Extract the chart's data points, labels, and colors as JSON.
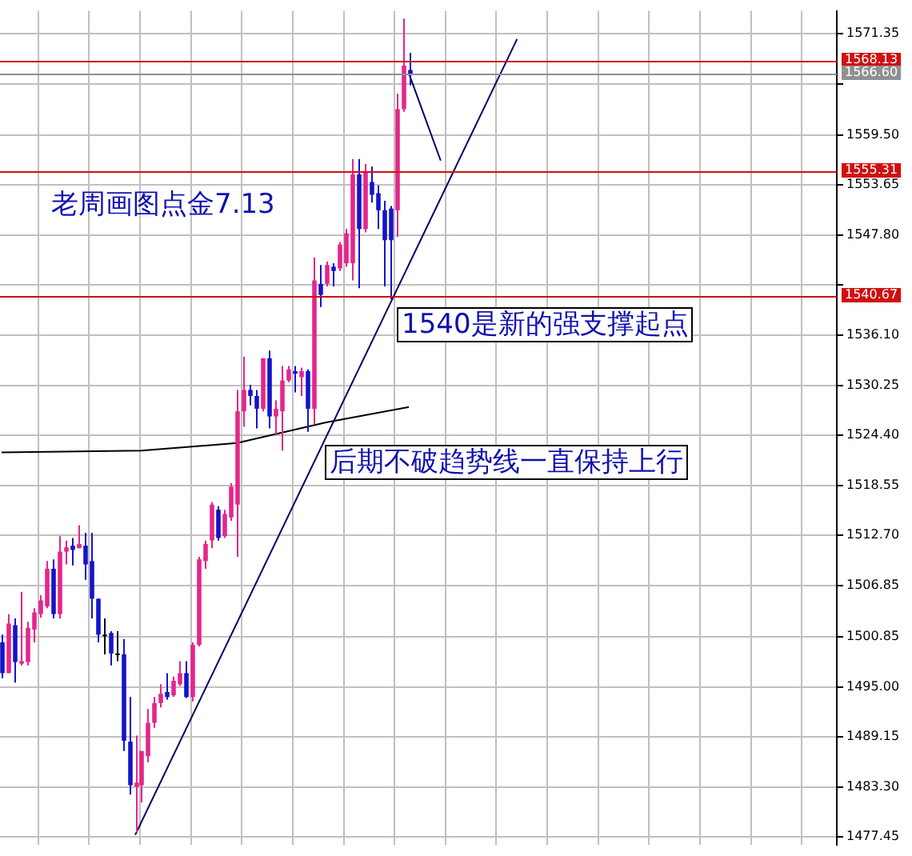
{
  "chart_data": {
    "type": "candlestick",
    "categories": [
      null,
      null,
      null,
      null,
      null,
      null,
      null,
      null,
      null,
      null,
      null,
      null,
      null,
      null,
      null,
      null,
      null,
      null,
      null,
      null,
      null,
      null,
      null,
      null,
      null,
      null,
      null,
      null,
      null,
      null,
      null,
      null,
      null,
      null,
      null,
      null,
      null,
      null,
      null,
      null,
      null,
      null,
      null,
      null,
      null,
      null,
      null,
      null,
      null,
      null,
      null,
      null,
      null,
      null,
      null,
      null,
      null,
      null,
      null,
      null,
      null,
      null,
      null,
      null,
      null,
      null,
      null,
      null,
      null,
      null,
      null,
      null,
      null,
      null,
      null,
      null,
      null,
      null,
      null,
      null,
      null,
      null,
      null,
      null,
      null,
      null,
      null,
      null,
      null,
      null,
      null,
      null,
      null,
      null,
      null,
      null,
      null,
      null,
      null,
      null,
      null,
      null,
      null,
      null,
      null,
      null,
      null,
      null,
      null,
      null,
      null,
      null,
      null,
      null,
      null,
      null,
      null,
      null,
      null,
      null,
      null,
      null,
      null,
      null,
      null,
      null,
      null,
      null,
      null,
      null,
      null,
      null
    ],
    "series": [
      {
        "type": "candlestick",
        "ohlc": [
          [
            1500.2,
            1501.1,
            1496.0,
            1496.6
          ],
          [
            1496.6,
            1503.5,
            1496.6,
            1502.4
          ],
          [
            1502.2,
            1503.0,
            1495.5,
            1497.9
          ],
          [
            1497.7,
            1506.1,
            1497.5,
            1498.0
          ],
          [
            1497.9,
            1502.6,
            1497.5,
            1501.9
          ],
          [
            1501.7,
            1504.2,
            1500.2,
            1503.7
          ],
          [
            1503.5,
            1505.7,
            1503.1,
            1505.1
          ],
          [
            1504.4,
            1509.7,
            1504.2,
            1508.8
          ],
          [
            1508.8,
            1509.9,
            1503.0,
            1503.5
          ],
          [
            1503.5,
            1512.6,
            1503.0,
            1510.8
          ],
          [
            1510.8,
            1512.1,
            1509.3,
            1511.3
          ],
          [
            1511.5,
            1512.4,
            1509.2,
            1511.0
          ],
          [
            1511.2,
            1513.9,
            1511.2,
            1511.7
          ],
          [
            1511.5,
            1513.0,
            1507.5,
            1509.3
          ],
          [
            1509.7,
            1513.0,
            1503.0,
            1505.3
          ],
          [
            1505.3,
            1505.3,
            1500.2,
            1501.1
          ],
          [
            1501.1,
            1503.0,
            1498.8,
            1501.1
          ],
          [
            1501.3,
            1501.5,
            1497.5,
            1498.9
          ],
          [
            1498.9,
            1501.5,
            1498.0,
            1498.9
          ],
          [
            1498.8,
            1500.6,
            1487.5,
            1488.7
          ],
          [
            1488.6,
            1493.8,
            1482.4,
            1483.5
          ],
          [
            1483.3,
            1489.3,
            1478.0,
            1483.8
          ],
          [
            1483.5,
            1487.5,
            1481.5,
            1487.5
          ],
          [
            1486.9,
            1492.4,
            1486.2,
            1490.8
          ],
          [
            1490.8,
            1493.8,
            1490.2,
            1493.1
          ],
          [
            1493.1,
            1495.3,
            1492.6,
            1494.2
          ],
          [
            1494.4,
            1496.6,
            1493.5,
            1493.8
          ],
          [
            1494.0,
            1496.2,
            1493.8,
            1495.7
          ],
          [
            1495.3,
            1498.0,
            1495.1,
            1496.6
          ],
          [
            1496.6,
            1498.0,
            1493.7,
            1493.8
          ],
          [
            1493.8,
            1500.2,
            1493.3,
            1499.9
          ],
          [
            1499.9,
            1510.2,
            1499.7,
            1509.9
          ],
          [
            1509.7,
            1512.1,
            1508.8,
            1511.7
          ],
          [
            1512.1,
            1516.6,
            1511.2,
            1516.3
          ],
          [
            1515.7,
            1516.1,
            1512.1,
            1512.4
          ],
          [
            1512.6,
            1515.7,
            1512.4,
            1515.2
          ],
          [
            1514.8,
            1518.8,
            1514.4,
            1518.4
          ],
          [
            1516.3,
            1529.7,
            1510.2,
            1527.2
          ],
          [
            1527.2,
            1533.6,
            1525.4,
            1529.7
          ],
          [
            1529.7,
            1530.3,
            1527.9,
            1529.0
          ],
          [
            1529.0,
            1529.7,
            1525.2,
            1527.5
          ],
          [
            1527.5,
            1533.4,
            1527.2,
            1533.4
          ],
          [
            1533.4,
            1534.3,
            1525.2,
            1526.6
          ],
          [
            1526.6,
            1528.5,
            1524.5,
            1527.5
          ],
          [
            1527.2,
            1532.5,
            1522.6,
            1530.8
          ],
          [
            1530.8,
            1532.5,
            1530.6,
            1532.1
          ],
          [
            1531.9,
            1532.5,
            1529.4,
            1531.6
          ],
          [
            1531.2,
            1532.3,
            1529.0,
            1531.9
          ],
          [
            1531.9,
            1532.1,
            1524.8,
            1527.5
          ],
          [
            1527.5,
            1545.2,
            1525.7,
            1542.5
          ],
          [
            1542.1,
            1544.3,
            1539.4,
            1540.8
          ],
          [
            1542.1,
            1544.7,
            1541.8,
            1544.3
          ],
          [
            1544.1,
            1544.5,
            1541.8,
            1543.6
          ],
          [
            1543.9,
            1547.0,
            1543.6,
            1546.7
          ],
          [
            1544.5,
            1548.5,
            1544.1,
            1548.0
          ],
          [
            1544.5,
            1556.7,
            1542.5,
            1554.9
          ],
          [
            1554.9,
            1556.7,
            1541.6,
            1548.5
          ],
          [
            1548.5,
            1556.1,
            1548.1,
            1555.2
          ],
          [
            1554.0,
            1555.8,
            1551.6,
            1552.5
          ],
          [
            1552.7,
            1553.6,
            1548.5,
            1550.7
          ],
          [
            1550.7,
            1551.8,
            1541.8,
            1547.2
          ],
          [
            1550.9,
            1551.2,
            1540.3,
            1547.2
          ],
          [
            1550.7,
            1564.3,
            1547.6,
            1562.5
          ],
          [
            1562.5,
            1573.1,
            1562.2,
            1567.6
          ],
          [
            1567.1,
            1569.1,
            1565.3,
            1566.6
          ],
          null,
          null,
          null,
          null,
          null,
          null,
          null,
          null,
          null,
          null,
          null,
          null,
          null,
          null,
          null,
          null,
          null,
          null,
          null,
          null,
          null,
          null,
          null,
          null,
          null,
          null,
          null,
          null,
          null,
          null,
          null,
          null,
          null,
          null,
          null,
          null,
          null,
          null,
          null,
          null,
          null,
          null,
          null,
          null,
          null,
          null,
          null,
          null,
          null,
          null,
          null,
          null,
          null,
          null,
          null,
          null,
          null,
          null,
          null,
          null,
          null,
          null,
          null,
          null,
          null,
          null,
          null
        ],
        "colors": [
          "#1414c8",
          "#e4268c",
          "#1414c8",
          "#e4268c",
          "#e4268c",
          "#e4268c",
          "#e4268c",
          "#e4268c",
          "#1414c8",
          "#e4268c",
          "#e4268c",
          "#1414c8",
          "#e4268c",
          "#1414c8",
          "#1414c8",
          "#1414c8",
          "#000000",
          "#1414c8",
          "#000000",
          "#1414c8",
          "#1414c8",
          "#e4268c",
          "#e4268c",
          "#e4268c",
          "#e4268c",
          "#e4268c",
          "#1414c8",
          "#e4268c",
          "#e4268c",
          "#1414c8",
          "#e4268c",
          "#e4268c",
          "#e4268c",
          "#e4268c",
          "#1414c8",
          "#e4268c",
          "#e4268c",
          "#e4268c",
          "#e4268c",
          "#1414c8",
          "#1414c8",
          "#e4268c",
          "#1414c8",
          "#e4268c",
          "#e4268c",
          "#e4268c",
          "#1414c8",
          "#e4268c",
          "#1414c8",
          "#e4268c",
          "#1414c8",
          "#e4268c",
          "#1414c8",
          "#e4268c",
          "#e4268c",
          "#e4268c",
          "#1414c8",
          "#e4268c",
          "#1414c8",
          "#1414c8",
          "#1414c8",
          "#1414c8",
          "#e4268c",
          "#e4268c",
          "#1414c8",
          null,
          null,
          null,
          null,
          null,
          null,
          null,
          null,
          null,
          null,
          null,
          null,
          null,
          null,
          null,
          null,
          null,
          null,
          null,
          null,
          null,
          null,
          null,
          null,
          null,
          null,
          null,
          null,
          null,
          null,
          null,
          null,
          null,
          null,
          null,
          null,
          null,
          null,
          null,
          null,
          null,
          null,
          null,
          null,
          null,
          null,
          null,
          null,
          null,
          null,
          null,
          null,
          null,
          null,
          null,
          null,
          null,
          null,
          null,
          null,
          null,
          null,
          null,
          null,
          null,
          null,
          null
        ]
      },
      {
        "type": "line",
        "color": "#000060",
        "values": [
          null,
          null,
          null,
          null,
          null,
          null,
          null,
          null,
          null,
          null,
          null,
          null,
          null,
          null,
          null,
          null,
          null,
          null,
          null,
          null,
          null,
          1477.7,
          null,
          null,
          null,
          null,
          null,
          null,
          null,
          null,
          null,
          null,
          null,
          null,
          null,
          null,
          null,
          null,
          null,
          null,
          null,
          null,
          null,
          null,
          null,
          null,
          null,
          null,
          null,
          null,
          null,
          null,
          null,
          null,
          null,
          null,
          null,
          null,
          null,
          null,
          null,
          null,
          null,
          null,
          null,
          null,
          null,
          null,
          null,
          null,
          null,
          null,
          null,
          null,
          null,
          null,
          null,
          null,
          null,
          null,
          null,
          1570.7,
          null,
          null,
          null,
          null,
          null,
          null,
          null,
          null,
          null,
          null,
          null,
          null,
          null,
          null,
          null,
          null,
          null,
          null,
          null,
          null,
          null,
          null,
          null,
          null,
          null,
          null,
          null,
          null,
          null,
          null,
          null,
          null,
          null,
          null,
          null,
          null,
          null,
          null,
          null,
          null,
          null,
          null,
          null,
          null,
          null,
          null,
          null,
          null,
          null,
          null
        ]
      },
      {
        "type": "line",
        "color": "#000060",
        "values": [
          null,
          null,
          null,
          null,
          null,
          null,
          null,
          null,
          null,
          null,
          null,
          null,
          null,
          null,
          null,
          null,
          null,
          null,
          null,
          null,
          null,
          null,
          null,
          null,
          null,
          null,
          null,
          null,
          null,
          null,
          null,
          null,
          null,
          null,
          null,
          null,
          null,
          null,
          null,
          null,
          null,
          null,
          null,
          null,
          null,
          null,
          null,
          null,
          null,
          null,
          null,
          null,
          null,
          null,
          null,
          null,
          null,
          null,
          null,
          null,
          null,
          null,
          null,
          null,
          1566.7,
          null,
          null,
          null,
          null,
          1556.5,
          null,
          null,
          null,
          null,
          null,
          null,
          null,
          null,
          null,
          null,
          null,
          null,
          null,
          null,
          null,
          null,
          null,
          null,
          null,
          null,
          null,
          null,
          null,
          null,
          null,
          null,
          null,
          null,
          null,
          null,
          null,
          null,
          null,
          null,
          null,
          null,
          null,
          null,
          null,
          null,
          null,
          null,
          null,
          null,
          null,
          null,
          null,
          null,
          null,
          null,
          null,
          null,
          null,
          null,
          null,
          null,
          null,
          null,
          null,
          null,
          null,
          null
        ]
      },
      {
        "type": "line",
        "color": "#000000",
        "values": [
          1522.4,
          null,
          null,
          null,
          null,
          null,
          null,
          null,
          null,
          null,
          null,
          null,
          null,
          null,
          null,
          null,
          null,
          null,
          null,
          null,
          null,
          null,
          1522.6,
          null,
          null,
          null,
          null,
          null,
          null,
          null,
          null,
          null,
          null,
          null,
          null,
          null,
          null,
          1523.5,
          null,
          null,
          null,
          null,
          null,
          null,
          null,
          null,
          null,
          null,
          null,
          null,
          null,
          1525.9,
          null,
          null,
          null,
          null,
          null,
          null,
          null,
          null,
          null,
          null,
          null,
          null,
          1527.7,
          null,
          null,
          null,
          null,
          null,
          null,
          null,
          null,
          null,
          null,
          null,
          null,
          null,
          null,
          null,
          null,
          null,
          null,
          null,
          null,
          null,
          null,
          null,
          null,
          null,
          null,
          null,
          null,
          null,
          null,
          null,
          null,
          null,
          null,
          null,
          null,
          null,
          null,
          null,
          null,
          null,
          null,
          null,
          null,
          null,
          null,
          null,
          null,
          null,
          null,
          null,
          null,
          null,
          null,
          null,
          null,
          null,
          null,
          null,
          null,
          null,
          null,
          null,
          null,
          null,
          null,
          null
        ]
      }
    ],
    "ylim": [
      1476.5,
      1574.0
    ],
    "yticks": [
      1571.35,
      {
        "value": 1565.5,
        "label": null
      },
      {
        "value": 1559.5,
        "label": "1559.50"
      },
      1553.65,
      {
        "value": 1547.8,
        "label": "1547.80"
      },
      {
        "value": 1541.95,
        "label": null
      },
      {
        "value": 1536.1,
        "label": "1536.10"
      },
      1530.25,
      {
        "value": 1524.4,
        "label": "1524.40"
      },
      1518.55,
      {
        "value": 1512.7,
        "label": "1512.70"
      },
      1506.85,
      1500.85,
      {
        "value": 1495.0,
        "label": "1495.00"
      },
      1489.15,
      {
        "value": 1483.3,
        "label": "1483.30"
      },
      1477.45
    ],
    "tick_labels": "y",
    "grid": true,
    "ref_lines": [
      {
        "axis": "y",
        "value": 1568.13,
        "label": "1568.13",
        "color": "#d01010"
      },
      {
        "axis": "y",
        "value": 1566.6,
        "label": "1566.60",
        "color": "#909090"
      },
      {
        "axis": "y",
        "value": 1555.31,
        "label": "1555.31",
        "color": "#d01010"
      },
      {
        "axis": "y",
        "value": 1540.67,
        "label": "1540.67",
        "color": "#d01010"
      }
    ],
    "annotations": [
      "老周画图点金7.13",
      "1540是新的强支撑起点",
      "后期不破趋势线一直保持上行"
    ]
  }
}
